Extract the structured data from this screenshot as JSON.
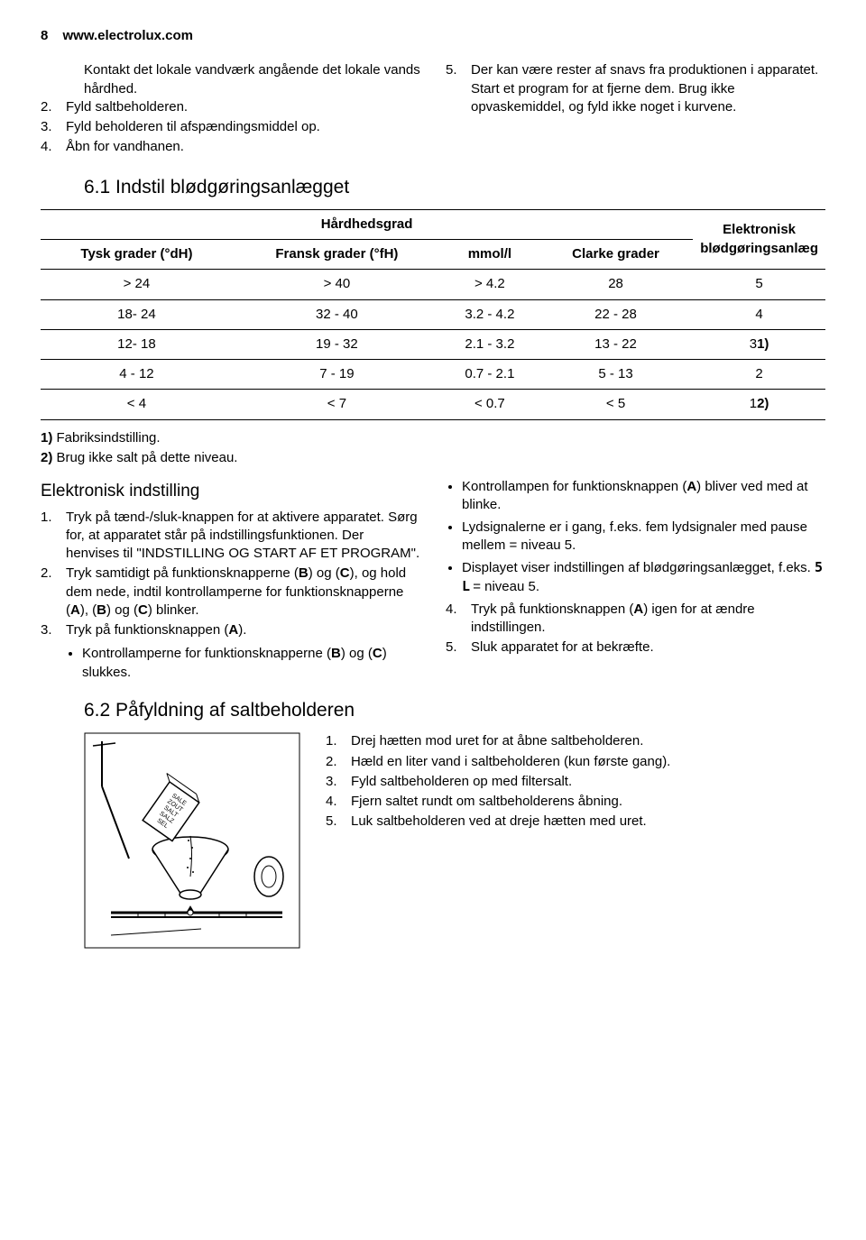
{
  "page_number": "8",
  "site": "www.electrolux.com",
  "left_intro": "Kontakt det lokale vandværk angående det lokale vands hårdhed.",
  "left_list": [
    {
      "n": "2.",
      "t": "Fyld saltbeholderen."
    },
    {
      "n": "3.",
      "t": "Fyld beholderen til afspændingsmiddel op."
    },
    {
      "n": "4.",
      "t": "Åbn for vandhanen."
    }
  ],
  "right_list5_n": "5.",
  "right_list5_t": "Der kan være rester af snavs fra produktionen i apparatet. Start et program for at fjerne dem. Brug ikke opvaskemiddel, og fyld ikke noget i kurvene.",
  "h_6_1": "6.1 Indstil blødgøringsanlægget",
  "table": {
    "group_header": "Hårdhedsgrad",
    "col5_header": "Elektronisk blødgøringsanlæg",
    "headers": [
      "Tysk grader (°dH)",
      "Fransk grader (°fH)",
      "mmol/l",
      "Clarke grader"
    ],
    "rows": [
      [
        "> 24",
        "> 40",
        "> 4.2",
        "28",
        "5"
      ],
      [
        "18- 24",
        "32 - 40",
        "3.2 - 4.2",
        "22 - 28",
        "4"
      ],
      [
        "12- 18",
        "19 - 32",
        "2.1 - 3.2",
        "13 - 22",
        "3",
        "1)"
      ],
      [
        "4 - 12",
        "7 - 19",
        "0.7 - 2.1",
        "5 - 13",
        "2"
      ],
      [
        "< 4",
        "< 7",
        "< 0.7",
        "< 5",
        "1",
        "2)"
      ]
    ]
  },
  "fn1_label": "1)",
  "fn1_text": " Fabriksindstilling.",
  "fn2_label": "2)",
  "fn2_text": " Brug ikke salt på dette niveau.",
  "sub_h": "Elektronisk indstilling",
  "elec_steps": [
    {
      "n": "1.",
      "t": "Tryk på tænd-/sluk-knappen for at aktivere apparatet. Sørg for, at apparatet står på indstillingsfunktionen. Der henvises til \"INDSTILLING OG START AF ET PROGRAM\"."
    },
    {
      "n": "2.",
      "html": "Tryk samtidigt på funktionsknapperne (<b>B</b>) og (<b>C</b>), og hold dem nede, indtil kontrollamperne for funktionsknapperne (<b>A</b>), (<b>B</b>) og (<b>C</b>) blinker."
    },
    {
      "n": "3.",
      "html": "Tryk på funktionsknappen (<b>A</b>)."
    }
  ],
  "elec_sub_bullets": [
    {
      "html": "Kontrollamperne for funktionsknapperne (<b>B</b>) og (<b>C</b>) slukkes."
    }
  ],
  "right_bullets": [
    {
      "html": "Kontrollampen for funktionsknappen (<b>A</b>) bliver ved med at blinke."
    },
    {
      "t": "Lydsignalerne er i gang, f.eks. fem lydsignaler med pause mellem = niveau 5."
    },
    {
      "html": "Displayet viser indstillingen af blødgøringsanlægget, f.eks. <span class='seg'>5 L</span> = niveau 5."
    }
  ],
  "right_steps": [
    {
      "n": "4.",
      "html": "Tryk på funktionsknappen (<b>A</b>) igen for at ændre indstillingen."
    },
    {
      "n": "5.",
      "t": "Sluk apparatet for at bekræfte."
    }
  ],
  "h_6_2": "6.2 Påfyldning af saltbeholderen",
  "salt_steps": [
    {
      "n": "1.",
      "t": "Drej hætten mod uret for at åbne saltbeholderen."
    },
    {
      "n": "2.",
      "t": "Hæld en liter vand i saltbeholderen (kun første gang)."
    },
    {
      "n": "3.",
      "t": "Fyld saltbeholderen op med filtersalt."
    },
    {
      "n": "4.",
      "t": "Fjern saltet rundt om saltbeholderens åbning."
    },
    {
      "n": "5.",
      "t": "Luk saltbeholderen ved at dreje hætten med uret."
    }
  ],
  "salt_labels": [
    "SALE",
    "ZOUT",
    "SALT",
    "SALZ",
    "SEL"
  ]
}
